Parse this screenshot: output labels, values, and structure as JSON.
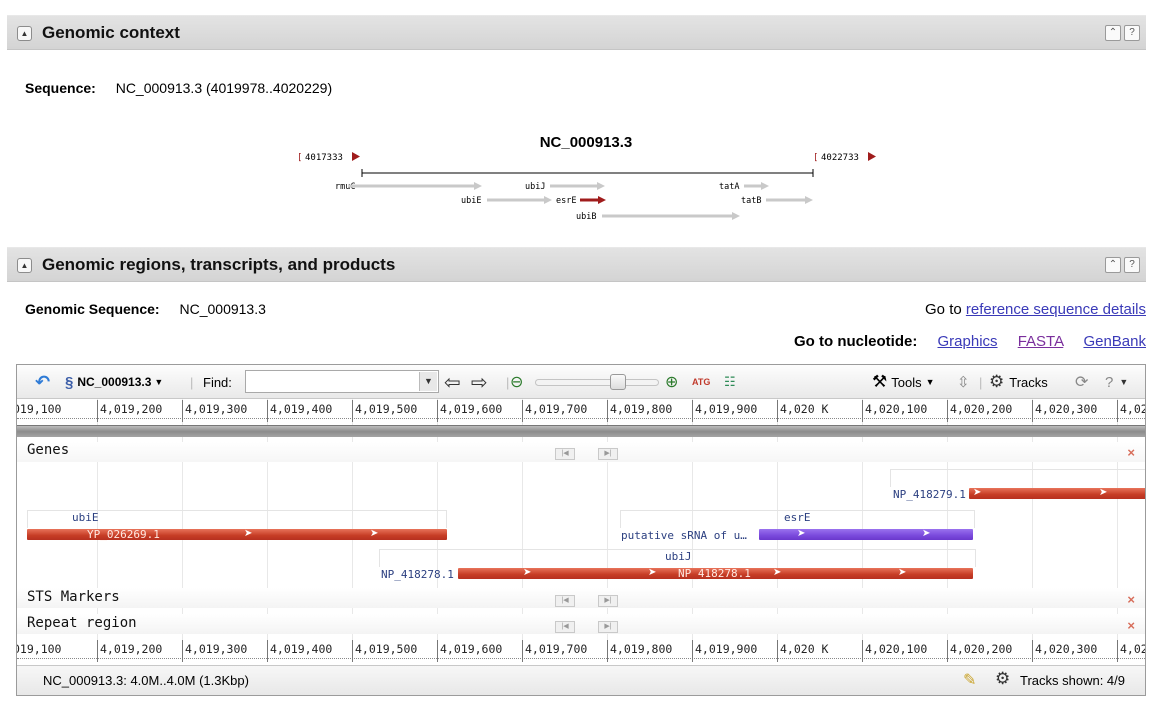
{
  "section1": {
    "title": "Genomic context"
  },
  "sequence": {
    "label": "Sequence:",
    "value": "NC_000913.3 (4019978..4020229)"
  },
  "context_map": {
    "title": "NC_000913.3",
    "left_bound": "4017333",
    "right_bound": "4022733",
    "genes": [
      "rmuC",
      "ubiJ",
      "tatA",
      "ubiE",
      "esrE",
      "tatB",
      "ubiB"
    ]
  },
  "section2": {
    "title": "Genomic regions, transcripts, and products"
  },
  "genomic_sequence": {
    "label": "Genomic Sequence:",
    "value": "NC_000913.3"
  },
  "goto_ref": {
    "prefix": "Go to",
    "link": "reference sequence details"
  },
  "goto_nuc": {
    "label": "Go to nucleotide:",
    "links": [
      "Graphics",
      "FASTA",
      "GenBank"
    ]
  },
  "viewer": {
    "seq_selector": "NC_000913.3",
    "find_label": "Find:",
    "find_value": "",
    "tools_label": "Tools",
    "tracks_label": "Tracks",
    "ruler_ticks": [
      "019,100",
      "4,019,200",
      "4,019,300",
      "4,019,400",
      "4,019,500",
      "4,019,600",
      "4,019,700",
      "4,019,800",
      "4,019,900",
      "4,020 K",
      "4,020,100",
      "4,020,200",
      "4,020,300",
      "4,02"
    ],
    "tracks": {
      "genes": "Genes",
      "sts": "STS Markers",
      "repeat": "Repeat region"
    },
    "features": {
      "np_418279": "NP_418279.1",
      "ubiE": "ubiE",
      "yp_026269": "YP_026269.1",
      "esrE": "esrE",
      "putative": "putative sRNA of u…",
      "ubiJ": "ubiJ",
      "np_418278_a": "NP_418278.1",
      "np_418278_b": "NP_418278.1"
    },
    "status_left": "NC_000913.3: 4.0M..4.0M (1.3Kbp)",
    "status_right": "Tracks shown: 4/9"
  },
  "icons": [
    "back-icon",
    "sequence-icon",
    "pan-left-icon",
    "pan-right-icon",
    "zoom-out-icon",
    "zoom-in-icon",
    "atg-icon",
    "tracks-config-icon",
    "tools-icon",
    "collapse-icon",
    "gear-icon",
    "refresh-icon",
    "help-icon",
    "edit-icon"
  ]
}
